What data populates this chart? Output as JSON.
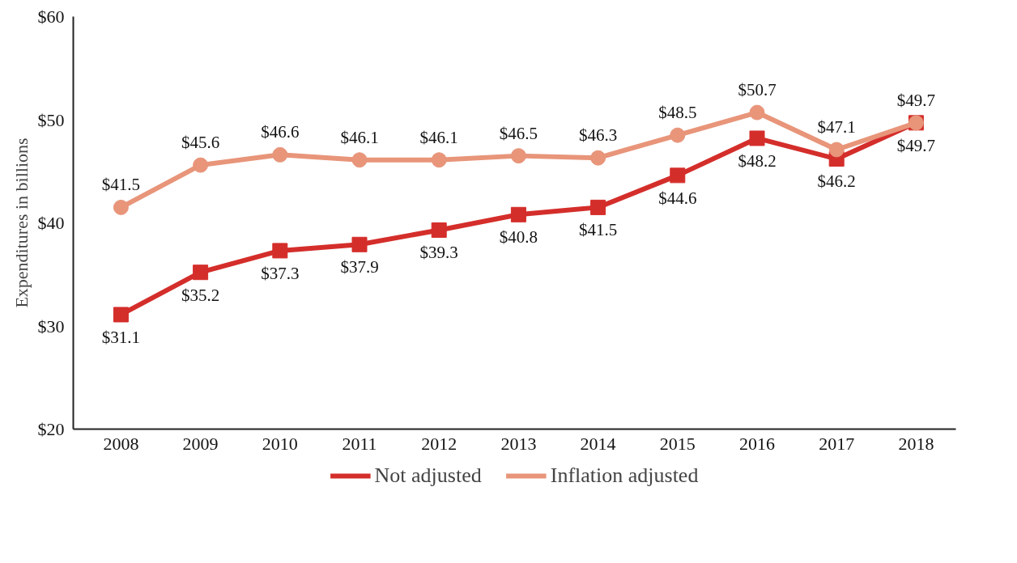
{
  "chart_data": {
    "type": "line",
    "ylabel": "Expenditures in billions",
    "categories": [
      "2008",
      "2009",
      "2010",
      "2011",
      "2012",
      "2013",
      "2014",
      "2015",
      "2016",
      "2017",
      "2018"
    ],
    "series": [
      {
        "name": "Not adjusted",
        "color": "#d42e2b",
        "marker": "square",
        "values": [
          31.1,
          35.2,
          37.3,
          37.9,
          39.3,
          40.8,
          41.5,
          44.6,
          48.2,
          46.2,
          49.7
        ],
        "value_labels": [
          "$31.1",
          "$35.2",
          "$37.3",
          "$37.9",
          "$39.3",
          "$40.8",
          "$41.5",
          "$44.6",
          "$48.2",
          "$46.2",
          "$49.7"
        ]
      },
      {
        "name": "Inflation adjusted",
        "color": "#e8957a",
        "marker": "circle",
        "values": [
          41.5,
          45.6,
          46.6,
          46.1,
          46.1,
          46.5,
          46.3,
          48.5,
          50.7,
          47.1,
          49.7
        ],
        "value_labels": [
          "$41.5",
          "$45.6",
          "$46.6",
          "$46.1",
          "$46.1",
          "$46.5",
          "$46.3",
          "$48.5",
          "$50.7",
          "$47.1",
          "$49.7"
        ]
      }
    ],
    "ylim": [
      20,
      60
    ],
    "yticks": [
      {
        "value": 20,
        "label": "$20"
      },
      {
        "value": 30,
        "label": "$30"
      },
      {
        "value": 40,
        "label": "$40"
      },
      {
        "value": 50,
        "label": "$50"
      },
      {
        "value": 60,
        "label": "$60"
      }
    ],
    "grid": false,
    "legend": "bottom",
    "line_style": "solid"
  }
}
